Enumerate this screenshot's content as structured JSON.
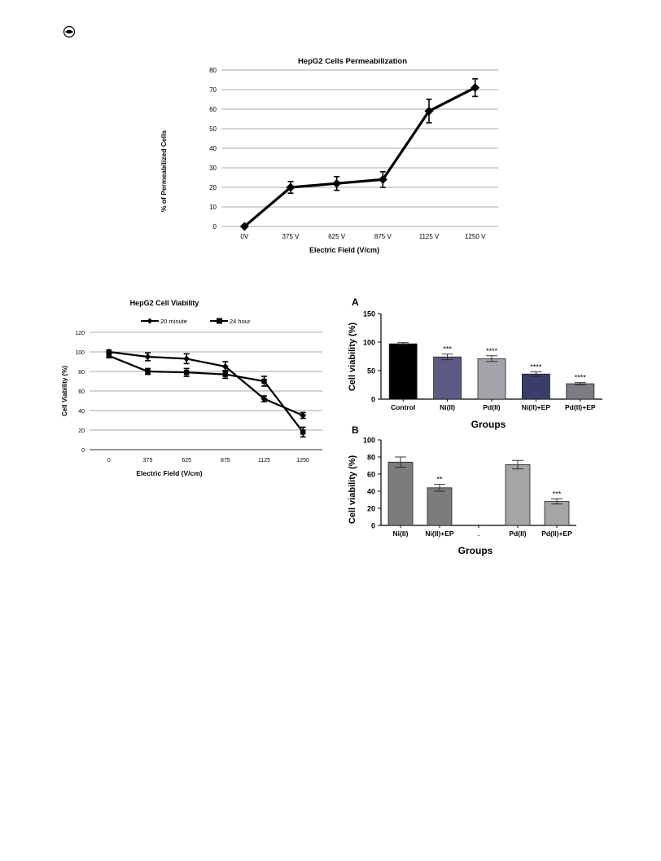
{
  "corner_mark": "eye-icon",
  "colors": {
    "line": "#000000",
    "grid": "#8c8c8c",
    "control": "#000000",
    "ni": "#5a5c85",
    "pd": "#a3a3a9",
    "ni_ep": "#3a3d6a",
    "pd_ep": "#7c7c84",
    "gray_bar": "#7c7c7c",
    "gray_bar_light": "#a5a5a5"
  },
  "chart_data": [
    {
      "type": "line",
      "title": "HepG2 Cells Permeabilization",
      "xlabel": "Electric Field (V/cm)",
      "ylabel": "% of Permeabilized Cells",
      "categories": [
        "0V",
        "375 V",
        "625 V",
        "875 V",
        "1125 V",
        "1250 V"
      ],
      "values": [
        0,
        20,
        22,
        24,
        59,
        71
      ],
      "errors": [
        0,
        3,
        3.5,
        4,
        6,
        4.5
      ],
      "ylim": [
        0,
        80
      ],
      "yticks": [
        "0",
        "10",
        "20",
        "30",
        "40",
        "50",
        "60",
        "70",
        "80"
      ],
      "grid": true
    },
    {
      "type": "line",
      "title": "HepG2 Cell Viability",
      "xlabel": "Electric Field (V/cm)",
      "ylabel": "Cell Viability (%)",
      "categories": [
        "0",
        "375",
        "625",
        "875",
        "1125",
        "1250"
      ],
      "series": [
        {
          "name": "20 minute",
          "marker": "diamond",
          "values": [
            100,
            95,
            93,
            85,
            52,
            35
          ],
          "errors": [
            2,
            4,
            5,
            5,
            3,
            3
          ]
        },
        {
          "name": "24 hour",
          "marker": "square",
          "values": [
            96,
            80,
            79,
            77,
            70,
            18
          ],
          "errors": [
            2,
            3,
            4,
            4,
            5,
            5
          ]
        }
      ],
      "ylim": [
        0,
        120
      ],
      "yticks": [
        "0",
        "20",
        "40",
        "60",
        "80",
        "100",
        "120"
      ],
      "legend": "top",
      "grid": true
    },
    {
      "type": "bar",
      "panel_label": "A",
      "xlabel": "Groups",
      "ylabel": "Cell viability (%)",
      "categories": [
        "Control",
        "Ni(II)",
        "Pd(II)",
        "Ni(II)+EP",
        "Pd(II)+EP"
      ],
      "values": [
        97,
        74,
        71,
        44,
        27
      ],
      "errors": [
        2,
        5,
        5,
        4,
        2
      ],
      "annotations": [
        "",
        "***",
        "****",
        "****",
        "****"
      ],
      "ylim": [
        0,
        150
      ],
      "yticks": [
        "0",
        "50",
        "100",
        "150"
      ]
    },
    {
      "type": "bar",
      "panel_label": "B",
      "xlabel": "Groups",
      "ylabel": "Cell viability (%)",
      "categories": [
        "Ni(II)",
        "Ni(II)+EP",
        ".",
        "Pd(II)",
        "Pd(II)+EP"
      ],
      "values": [
        74,
        44,
        null,
        71,
        28
      ],
      "errors": [
        6,
        4,
        0,
        5,
        3
      ],
      "annotations": [
        "",
        "**",
        "",
        "",
        "***"
      ],
      "ylim": [
        0,
        100
      ],
      "yticks": [
        "0",
        "20",
        "40",
        "60",
        "80",
        "100"
      ]
    }
  ]
}
